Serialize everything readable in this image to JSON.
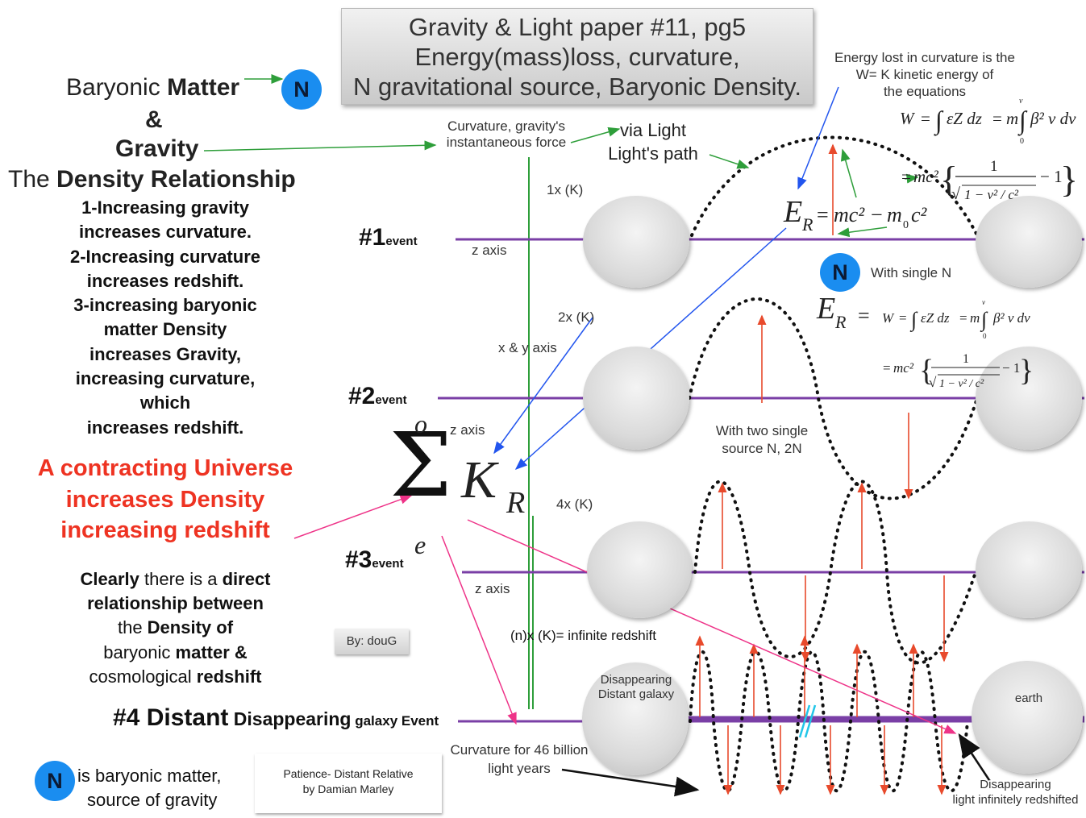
{
  "title": {
    "line1": "Gravity & Light paper #11, pg5",
    "line2": "Energy(mass)loss, curvature,",
    "line3": "N gravitational source, Baryonic Density."
  },
  "left": {
    "h1_pre": "Baryonic ",
    "h1_bold": "Matter",
    "amp": "&",
    "gravity": "Gravity",
    "density_pre": "The ",
    "density_bold": "Density Relationship",
    "items": [
      "1-Increasing gravity",
      "increases curvature.",
      "2-Increasing curvature",
      "increases redshift.",
      "3-increasing baryonic",
      "matter Density",
      "increases Gravity,",
      "increasing curvature,",
      "which",
      "increases redshift."
    ],
    "red": [
      "A contracting Universe",
      "increases Density",
      "increasing redshift"
    ],
    "conclusion": {
      "l1a": "Clearly",
      "l1b": " there is a ",
      "l1c": "direct",
      "l2": "relationship between",
      "l3a": "the ",
      "l3b": "Density of",
      "l4a": "baryonic ",
      "l4b": "matter &",
      "l5a": "cosmological ",
      "l5b": "redshift"
    },
    "n_caption_1": "is baryonic matter,",
    "n_caption_2": "source of gravity"
  },
  "badge_letter": "N",
  "labels": {
    "curv1": "Curvature, gravity's",
    "curv2": "instantaneous force",
    "via1": "via Light",
    "via2": "Light's path",
    "energy1": "Energy lost in curvature is the",
    "energy2": "W= K kinetic energy of",
    "energy3": "the equations",
    "k1": "1x (K)",
    "k2": "2x (K)",
    "k4": "4x (K)",
    "kn": "(n)x (K)= infinite redshift",
    "z_axis": "z axis",
    "xy_axis": "x & y axis",
    "single_n": "With single N",
    "two_n1": "With two single",
    "two_n2": "source N, 2N",
    "by": "By: douG",
    "song1": "Patience- Distant Relative",
    "song2": "by Damian Marley",
    "dis_gal1": "Disappearing",
    "dis_gal2": "Distant galaxy",
    "earth": "earth",
    "curv46_1": "Curvature for 46 billion",
    "curv46_2": "light years",
    "dis_light1": "Disappearing",
    "dis_light2": "light infinitely redshifted"
  },
  "events": {
    "e1_num": "#1",
    "e1_sub": "event",
    "e2_num": "#2",
    "e2_sub": "event",
    "e3_num": "#3",
    "e3_sub": "event",
    "e4a": "#4 Distant",
    "e4b": " Disappearing",
    "e4c": " galaxy",
    "e4d": " Event"
  },
  "sigma": {
    "symbol": "Σ",
    "upper": "o",
    "lower": "e",
    "K": "K",
    "R": "R"
  },
  "colors": {
    "axis": "#7a3fa6",
    "green": "#2e9e3a",
    "blue": "#2255ee",
    "pink": "#ee3388",
    "red_arrow": "#e84a2c",
    "badge": "#1a8df0"
  }
}
